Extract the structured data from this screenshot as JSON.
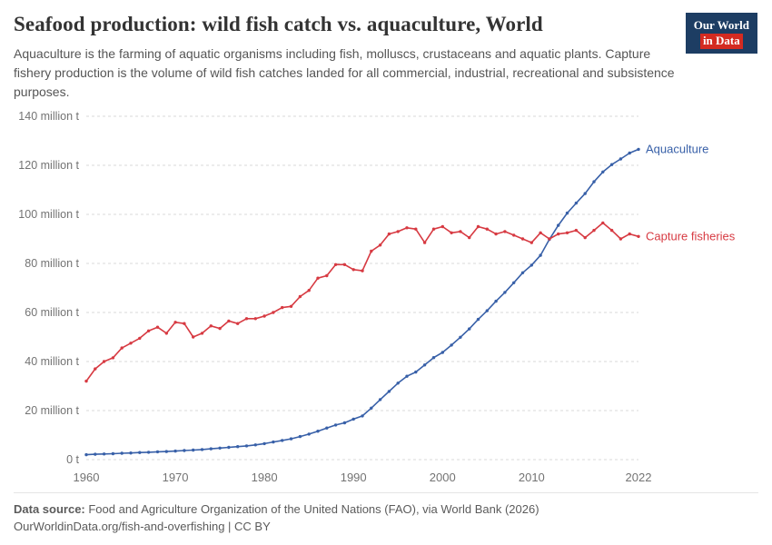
{
  "header": {
    "title": "Seafood production: wild fish catch vs. aquaculture, World",
    "subtitle": "Aquaculture is the farming of aquatic organisms including fish, molluscs, crustaceans and aquatic plants. Capture fishery production is the volume of wild fish catches landed for all commercial, industrial, recreational and subsistence purposes.",
    "logo": {
      "line1": "Our World",
      "line2": "in Data"
    }
  },
  "chart_data": {
    "type": "line",
    "title": "Seafood production: wild fish catch vs. aquaculture, World",
    "xlim": [
      1960,
      2022
    ],
    "ylim": [
      0,
      140
    ],
    "grid": "horizontal-dashed",
    "legend_position": "line-end-labels",
    "xtick_values": [
      1960,
      1970,
      1980,
      1990,
      2000,
      2010,
      2022
    ],
    "ytick_values": [
      0,
      20,
      40,
      60,
      80,
      100,
      120,
      140
    ],
    "ytick_labels": [
      "0 t",
      "20 million t",
      "40 million t",
      "60 million t",
      "80 million t",
      "100 million t",
      "120 million t",
      "140 million t"
    ],
    "x": [
      1960,
      1961,
      1962,
      1963,
      1964,
      1965,
      1966,
      1967,
      1968,
      1969,
      1970,
      1971,
      1972,
      1973,
      1974,
      1975,
      1976,
      1977,
      1978,
      1979,
      1980,
      1981,
      1982,
      1983,
      1984,
      1985,
      1986,
      1987,
      1988,
      1989,
      1990,
      1991,
      1992,
      1993,
      1994,
      1995,
      1996,
      1997,
      1998,
      1999,
      2000,
      2001,
      2002,
      2003,
      2004,
      2005,
      2006,
      2007,
      2008,
      2009,
      2010,
      2011,
      2012,
      2013,
      2014,
      2015,
      2016,
      2017,
      2018,
      2019,
      2020,
      2021,
      2022
    ],
    "series": [
      {
        "name": "Aquaculture",
        "color": "#3860a8",
        "unit": "million t",
        "values": [
          2.0,
          2.2,
          2.3,
          2.4,
          2.6,
          2.7,
          2.9,
          3.0,
          3.2,
          3.3,
          3.5,
          3.7,
          3.9,
          4.1,
          4.4,
          4.7,
          5.0,
          5.3,
          5.6,
          6.0,
          6.5,
          7.2,
          7.8,
          8.5,
          9.4,
          10.4,
          11.6,
          12.9,
          14.1,
          15.0,
          16.5,
          17.8,
          21.0,
          24.5,
          27.8,
          31.2,
          34.0,
          35.7,
          38.6,
          41.6,
          43.7,
          46.7,
          49.9,
          53.3,
          57.2,
          60.7,
          64.6,
          68.2,
          72.1,
          76.2,
          79.3,
          83.3,
          89.8,
          95.5,
          100.5,
          104.6,
          108.5,
          113.3,
          117.3,
          120.3,
          122.6,
          125.0,
          126.5
        ]
      },
      {
        "name": "Capture fisheries",
        "color": "#d73a42",
        "unit": "million t",
        "values": [
          32.0,
          37.0,
          40.0,
          41.5,
          45.5,
          47.5,
          49.5,
          52.5,
          54.0,
          51.5,
          56.0,
          55.5,
          50.0,
          51.5,
          54.5,
          53.5,
          56.5,
          55.5,
          57.5,
          57.5,
          58.5,
          60.0,
          62.0,
          62.5,
          66.5,
          69.0,
          74.0,
          75.0,
          79.5,
          79.5,
          77.5,
          77.0,
          85.0,
          87.5,
          92.0,
          93.0,
          94.5,
          94.0,
          88.5,
          94.0,
          95.0,
          92.5,
          93.0,
          90.5,
          95.0,
          94.0,
          92.0,
          93.0,
          91.5,
          90.0,
          88.5,
          92.5,
          90.0,
          92.0,
          92.5,
          93.5,
          90.5,
          93.5,
          96.5,
          93.5,
          90.0,
          92.0,
          91.0
        ]
      }
    ]
  },
  "footer": {
    "source_label": "Data source:",
    "source_text": " Food and Agriculture Organization of the United Nations (FAO), via World Bank (2026)",
    "note": "OurWorldinData.org/fish-and-overfishing | CC BY"
  }
}
